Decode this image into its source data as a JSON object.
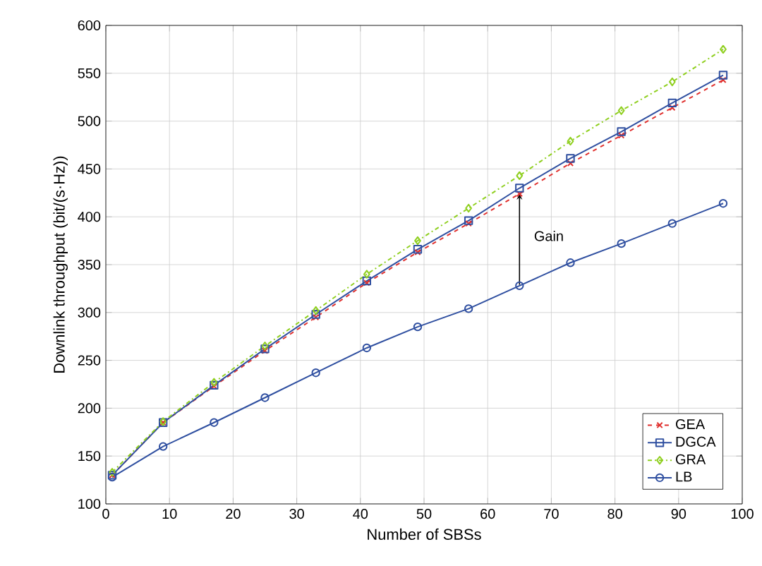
{
  "chart_data": {
    "type": "line",
    "xlabel": "Number of SBSs",
    "ylabel": "Downlink throughput (bit/(s·Hz))",
    "xlim": [
      0,
      100
    ],
    "xticks": [
      0,
      10,
      20,
      30,
      40,
      50,
      60,
      70,
      80,
      90,
      100
    ],
    "ylim": [
      100,
      600
    ],
    "yticks": [
      100,
      150,
      200,
      250,
      300,
      350,
      400,
      450,
      500,
      550,
      600
    ],
    "grid": true,
    "legend": "bottom right",
    "annotations": [
      "Gain"
    ],
    "series": [
      {
        "name": "GEA",
        "color": "#e0312f",
        "marker": "cross",
        "line_style": "dashed",
        "x": [
          1,
          9,
          17,
          25,
          33,
          41,
          49,
          57,
          65,
          73,
          81,
          89,
          97
        ],
        "values": [
          130,
          185,
          223,
          260,
          295,
          331,
          363,
          393,
          424,
          456,
          485,
          514,
          543
        ]
      },
      {
        "name": "DGCA",
        "color": "#2f4fa0",
        "marker": "square",
        "line_style": "solid",
        "x": [
          1,
          9,
          17,
          25,
          33,
          41,
          49,
          57,
          65,
          73,
          81,
          89,
          97
        ],
        "values": [
          130,
          185,
          224,
          262,
          298,
          333,
          366,
          396,
          430,
          461,
          489,
          519,
          548
        ]
      },
      {
        "name": "GRA",
        "color": "#8fcf1f",
        "marker": "diamond",
        "line_style": "dashdot",
        "x": [
          1,
          9,
          17,
          25,
          33,
          41,
          49,
          57,
          65,
          73,
          81,
          89,
          97
        ],
        "values": [
          133,
          186,
          227,
          265,
          302,
          340,
          375,
          409,
          443,
          479,
          511,
          541,
          575
        ]
      },
      {
        "name": "LB",
        "color": "#2f4fa0",
        "marker": "circle",
        "line_style": "solid",
        "x": [
          1,
          9,
          17,
          25,
          33,
          41,
          49,
          57,
          65,
          73,
          81,
          89,
          97
        ],
        "values": [
          128,
          160,
          185,
          211,
          237,
          263,
          285,
          304,
          328,
          352,
          372,
          393,
          414
        ]
      }
    ]
  }
}
